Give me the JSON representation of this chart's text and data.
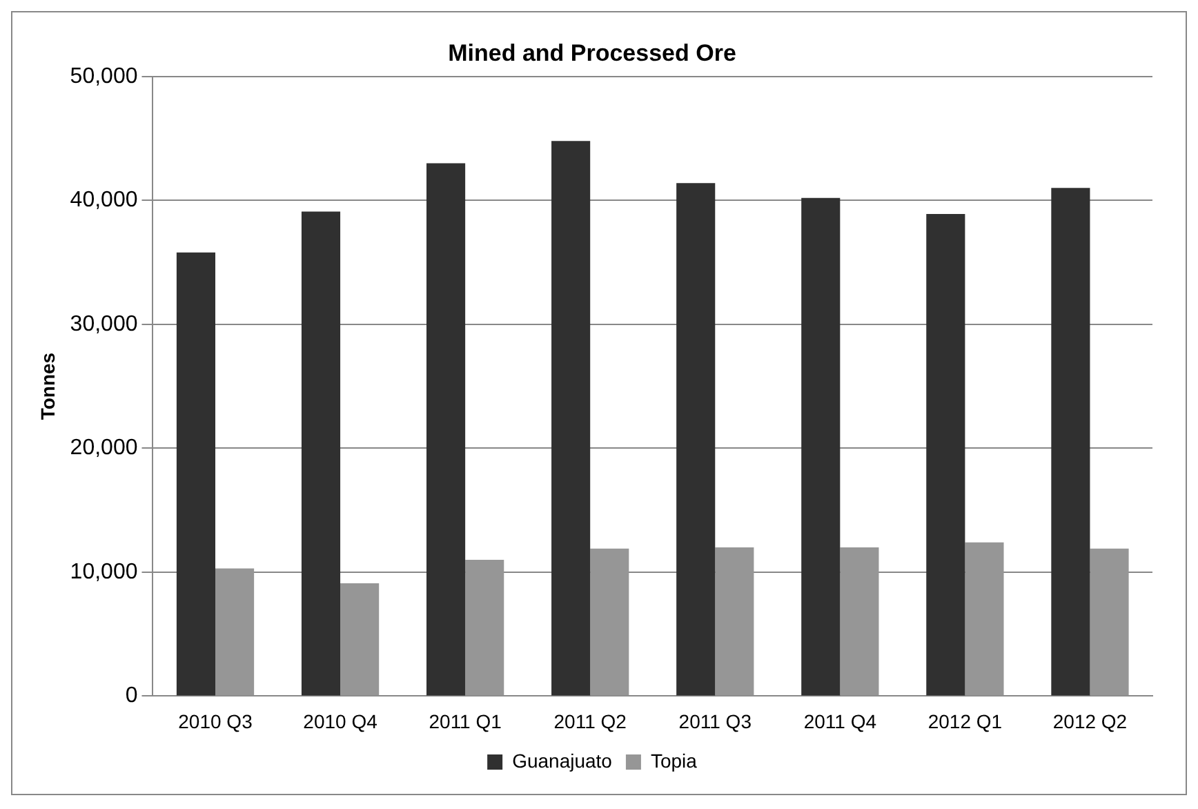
{
  "chart_data": {
    "type": "bar",
    "title": "Mined and Processed Ore",
    "ylabel": "Tonnes",
    "categories": [
      "2010 Q3",
      "2010 Q4",
      "2011 Q1",
      "2011 Q2",
      "2011 Q3",
      "2011 Q4",
      "2012 Q1",
      "2012 Q2"
    ],
    "series": [
      {
        "name": "Guanajuato",
        "color": "#303030",
        "values": [
          35800,
          39100,
          43000,
          44800,
          41400,
          40200,
          38900,
          41000
        ]
      },
      {
        "name": "Topia",
        "color": "#969696",
        "values": [
          10300,
          9100,
          11000,
          11900,
          12000,
          12000,
          12400,
          11900
        ]
      }
    ],
    "ylim": [
      0,
      50000
    ],
    "yticks": [
      0,
      {
        "value": 10000,
        "label": "10,000"
      },
      {
        "value": 20000,
        "label": "20,000"
      },
      {
        "value": 30000,
        "label": "30,000"
      },
      {
        "value": 40000,
        "label": "40,000"
      },
      {
        "value": 50000,
        "label": "50,000"
      }
    ],
    "grid": "y",
    "legend": "bottom"
  }
}
